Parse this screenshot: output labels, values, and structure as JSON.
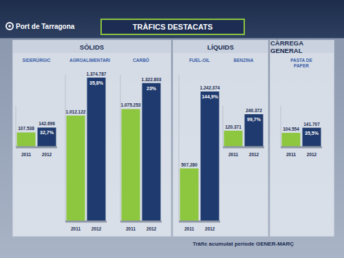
{
  "logo": "Port de Tarragona",
  "title": "TRÀFICS DESTACATS",
  "footnote": "Tràfic acumulat període GENER-MARÇ",
  "chart_data": [
    {
      "type": "bar",
      "group": "SÒLIDS",
      "title": "SIDERÚRGIC",
      "categories": [
        "2011",
        "2012"
      ],
      "values": [
        107538,
        142696
      ],
      "value_labels": [
        "107.538",
        "142.696"
      ],
      "colors": [
        "#8dc63f",
        "#1f3a6e"
      ],
      "annotation": "32,7%",
      "ylim": [
        0,
        300000
      ],
      "data_labels": true,
      "tick_labels": "x"
    },
    {
      "type": "bar",
      "group": "SÒLIDS",
      "title": "AGROALIMENTARI",
      "categories": [
        "2011",
        "2012"
      ],
      "values": [
        1012122,
        1374787
      ],
      "value_labels": [
        "1.012.122",
        "1.374.787"
      ],
      "colors": [
        "#8dc63f",
        "#1f3a6e"
      ],
      "annotation": "35,8%",
      "ylim": [
        0,
        1400000
      ],
      "data_labels": true,
      "tick_labels": "x"
    },
    {
      "type": "bar",
      "group": "SÒLIDS",
      "title": "CARBÓ",
      "categories": [
        "2011",
        "2012"
      ],
      "values": [
        1075253,
        1322803
      ],
      "value_labels": [
        "1.075.253",
        "1.322.803"
      ],
      "colors": [
        "#8dc63f",
        "#1f3a6e"
      ],
      "annotation": "23%",
      "ylim": [
        0,
        1400000
      ],
      "data_labels": true,
      "tick_labels": "x"
    },
    {
      "type": "bar",
      "group": "LÍQUIDS",
      "title": "FUEL-OIL",
      "categories": [
        "2011",
        "2012"
      ],
      "values": [
        507280,
        1242374
      ],
      "value_labels": [
        "507.280",
        "1.242.374"
      ],
      "colors": [
        "#8dc63f",
        "#1f3a6e"
      ],
      "annotation": "144,9%",
      "ylim": [
        0,
        1400000
      ],
      "data_labels": true,
      "tick_labels": "x"
    },
    {
      "type": "bar",
      "group": "LÍQUIDS",
      "title": "BENZINA",
      "categories": [
        "2011",
        "2012"
      ],
      "values": [
        120371,
        240372
      ],
      "value_labels": [
        "120.371",
        "240.372"
      ],
      "colors": [
        "#8dc63f",
        "#1f3a6e"
      ],
      "annotation": "99,7%",
      "ylim": [
        0,
        300000
      ],
      "data_labels": true,
      "tick_labels": "x"
    },
    {
      "type": "bar",
      "group": "CÀRREGA GENERAL",
      "title": "PASTA DE PAPER",
      "categories": [
        "2011",
        "2012"
      ],
      "values": [
        104554,
        141707
      ],
      "value_labels": [
        "104.554",
        "141.707"
      ],
      "colors": [
        "#8dc63f",
        "#1f3a6e"
      ],
      "annotation": "35,5%",
      "ylim": [
        0,
        300000
      ],
      "data_labels": true,
      "tick_labels": "x"
    }
  ]
}
